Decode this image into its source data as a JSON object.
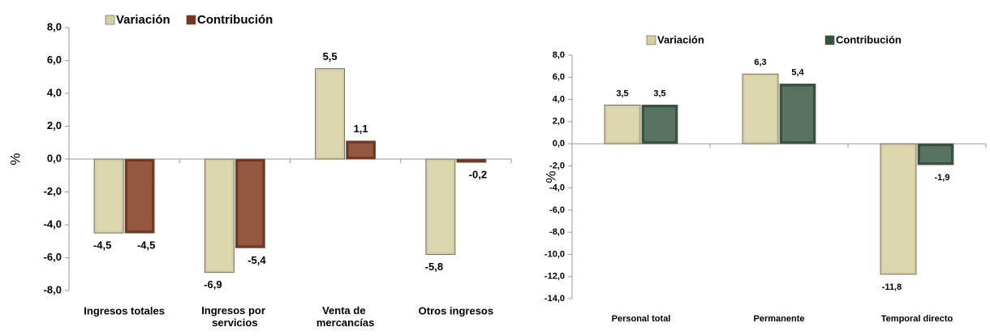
{
  "chart_data": [
    {
      "type": "bar",
      "y_label": "%",
      "categories": [
        "Ingresos totales",
        "Ingresos por servicios",
        "Venta de mercancías",
        "Otros ingresos"
      ],
      "series": [
        {
          "name": "Variación",
          "color": "#d6cf9e",
          "values": [
            -4.5,
            -6.9,
            5.5,
            -5.8
          ],
          "value_labels": [
            "-4,5",
            "-6,9",
            "5,5",
            "-5,8"
          ]
        },
        {
          "name": "Contribución",
          "color": "#7b3516",
          "values": [
            -4.5,
            -5.4,
            1.1,
            -0.2
          ],
          "value_labels": [
            "-4,5",
            "-5,4",
            "1,1",
            "-0,2"
          ]
        }
      ],
      "ylim": [
        -8,
        8
      ],
      "yticks": [
        {
          "value": -8,
          "label": "-8,0"
        },
        {
          "value": -6,
          "label": "-6,0"
        },
        {
          "value": -4,
          "label": "-4,0"
        },
        {
          "value": -2,
          "label": "-2,0"
        },
        {
          "value": 0,
          "label": "0,0"
        },
        {
          "value": 2,
          "label": "2,0"
        },
        {
          "value": 4,
          "label": "4,0"
        },
        {
          "value": 6,
          "label": "6,0"
        },
        {
          "value": 8,
          "label": "8,0"
        }
      ],
      "grid": false,
      "legend": "top"
    },
    {
      "type": "bar",
      "y_label": "%",
      "categories": [
        "Personal total",
        "Permanente",
        "Temporal directo"
      ],
      "series": [
        {
          "name": "Variación",
          "color": "#d6cf9e",
          "values": [
            3.5,
            6.3,
            -11.8
          ],
          "value_labels": [
            "3,5",
            "6,3",
            "-11,8"
          ]
        },
        {
          "name": "Contribución",
          "color": "#34533d",
          "values": [
            3.5,
            5.4,
            -1.9
          ],
          "value_labels": [
            "3,5",
            "5,4",
            "-1,9"
          ]
        }
      ],
      "ylim": [
        -14,
        8
      ],
      "yticks": [
        {
          "value": -14,
          "label": "-14,0"
        },
        {
          "value": -12,
          "label": "-12,0"
        },
        {
          "value": -10,
          "label": "-10,0"
        },
        {
          "value": -8,
          "label": "-8,0"
        },
        {
          "value": -6,
          "label": "-6,0"
        },
        {
          "value": -4,
          "label": "-4,0"
        },
        {
          "value": -2,
          "label": "-2,0"
        },
        {
          "value": 0,
          "label": "0,0"
        },
        {
          "value": 2,
          "label": "2,0"
        },
        {
          "value": 4,
          "label": "4,0"
        },
        {
          "value": 6,
          "label": "6,0"
        },
        {
          "value": 8,
          "label": "8,0"
        }
      ],
      "grid": false,
      "legend": "top"
    }
  ]
}
